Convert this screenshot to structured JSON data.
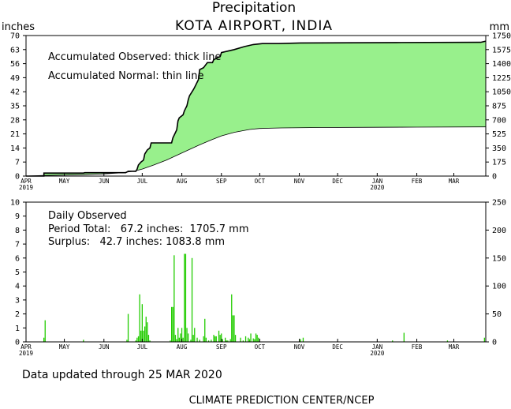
{
  "header": {
    "title": "Precipitation",
    "station": "KOTA AIRPORT, INDIA",
    "left_unit": "inches",
    "right_unit": "mm"
  },
  "top_panel": {
    "legend_observed": "Accumulated Observed: thick line",
    "legend_normal": "Accumulated Normal: thin line"
  },
  "bottom_panel": {
    "label": "Daily Observed",
    "period_total": "Period Total:   67.2 inches:  1705.7 mm",
    "surplus": "Surplus:   42.7 inches: 1083.8 mm"
  },
  "footer": {
    "updated": "Data updated through 25 MAR 2020",
    "credit": "CLIMATE PREDICTION CENTER/NCEP"
  },
  "colors": {
    "fill": "#98F08C",
    "bar": "#22CC00",
    "axis": "#000000"
  },
  "chart_data": [
    {
      "type": "area",
      "title": "Precipitation",
      "subtitle": "KOTA AIRPORT, INDIA",
      "ylabel": "inches",
      "y2label": "mm",
      "xlim_days": [
        0,
        360
      ],
      "ylim": [
        0,
        70
      ],
      "y2lim": [
        0,
        1750
      ],
      "yticks": [
        0,
        7,
        14,
        21,
        28,
        35,
        42,
        49,
        56,
        63,
        70
      ],
      "y2ticks": [
        0,
        175,
        350,
        525,
        700,
        875,
        1050,
        1225,
        1400,
        1575,
        1750
      ],
      "x_months": [
        {
          "label": "APR",
          "year": "2019",
          "day": 0
        },
        {
          "label": "MAY",
          "year": "",
          "day": 30
        },
        {
          "label": "JUN",
          "year": "",
          "day": 61
        },
        {
          "label": "JUL",
          "year": "",
          "day": 91
        },
        {
          "label": "AUG",
          "year": "",
          "day": 122
        },
        {
          "label": "SEP",
          "year": "",
          "day": 153
        },
        {
          "label": "OCT",
          "year": "",
          "day": 183
        },
        {
          "label": "NOV",
          "year": "",
          "day": 214
        },
        {
          "label": "DEC",
          "year": "",
          "day": 244
        },
        {
          "label": "JAN",
          "year": "2020",
          "day": 275
        },
        {
          "label": "FEB",
          "year": "",
          "day": 306
        },
        {
          "label": "MAR",
          "year": "",
          "day": 335
        }
      ],
      "series": [
        {
          "name": "Accumulated Observed",
          "points": [
            [
              0,
              0
            ],
            [
              14,
              0
            ],
            [
              14,
              1.5
            ],
            [
              45,
              1.5
            ],
            [
              46,
              1.7
            ],
            [
              78,
              1.7
            ],
            [
              80,
              2.4
            ],
            [
              86,
              2.4
            ],
            [
              87,
              3.5
            ],
            [
              88,
              5.5
            ],
            [
              90,
              7
            ],
            [
              92,
              8
            ],
            [
              93,
              11
            ],
            [
              95,
              13
            ],
            [
              97,
              14
            ],
            [
              98,
              16.5
            ],
            [
              114,
              16.5
            ],
            [
              115,
              19
            ],
            [
              118,
              23
            ],
            [
              119,
              27.5
            ],
            [
              120,
              29
            ],
            [
              123,
              30.5
            ],
            [
              124,
              32.5
            ],
            [
              126,
              35
            ],
            [
              127,
              38
            ],
            [
              128,
              40
            ],
            [
              131,
              43
            ],
            [
              132,
              44.2
            ],
            [
              135,
              48
            ],
            [
              136,
              53
            ],
            [
              139,
              54
            ],
            [
              142,
              56.5
            ],
            [
              146,
              56.5
            ],
            [
              147,
              58
            ],
            [
              152,
              59.5
            ],
            [
              153,
              61.5
            ],
            [
              163,
              63
            ],
            [
              171,
              64.5
            ],
            [
              178,
              65.5
            ],
            [
              185,
              66
            ],
            [
              198,
              66
            ],
            [
              215,
              66.3
            ],
            [
              290,
              66.5
            ],
            [
              356,
              66.6
            ],
            [
              360,
              67.2
            ]
          ]
        },
        {
          "name": "Accumulated Normal",
          "points": [
            [
              0,
              0
            ],
            [
              14,
              0.3
            ],
            [
              30,
              0.5
            ],
            [
              45,
              0.7
            ],
            [
              61,
              1.1
            ],
            [
              75,
              1.6
            ],
            [
              85,
              2.5
            ],
            [
              91,
              3.5
            ],
            [
              100,
              5.5
            ],
            [
              110,
              8
            ],
            [
              122,
              11.5
            ],
            [
              135,
              15.3
            ],
            [
              145,
              18
            ],
            [
              153,
              20
            ],
            [
              163,
              21.8
            ],
            [
              175,
              23.2
            ],
            [
              183,
              23.7
            ],
            [
              200,
              24
            ],
            [
              230,
              24.2
            ],
            [
              275,
              24.3
            ],
            [
              306,
              24.4
            ],
            [
              360,
              24.5
            ]
          ]
        }
      ]
    },
    {
      "type": "bar",
      "title": "Daily Observed",
      "ylabel": "inches",
      "y2label": "mm",
      "xlim_days": [
        0,
        360
      ],
      "ylim": [
        0,
        10
      ],
      "y2lim": [
        0,
        250
      ],
      "yticks": [
        0,
        1,
        2,
        3,
        4,
        5,
        6,
        7,
        8,
        9,
        10
      ],
      "y2ticks": [
        0,
        50,
        100,
        150,
        200,
        250
      ],
      "series": [
        {
          "name": "Daily Observed",
          "points": [
            [
              14,
              0.3
            ],
            [
              15,
              1.55
            ],
            [
              45,
              0.15
            ],
            [
              79,
              0.15
            ],
            [
              80,
              2.0
            ],
            [
              86,
              0.1
            ],
            [
              87,
              0.3
            ],
            [
              88,
              0.4
            ],
            [
              89,
              3.4
            ],
            [
              90,
              0.8
            ],
            [
              91,
              2.7
            ],
            [
              92,
              0.8
            ],
            [
              93,
              1.1
            ],
            [
              94,
              1.8
            ],
            [
              95,
              1.4
            ],
            [
              96,
              0.5
            ],
            [
              97,
              0.1
            ],
            [
              113,
              0.1
            ],
            [
              114,
              2.5
            ],
            [
              115,
              2.5
            ],
            [
              116,
              6.2
            ],
            [
              117,
              0.5
            ],
            [
              118,
              0.2
            ],
            [
              119,
              1.0
            ],
            [
              120,
              0.3
            ],
            [
              121,
              0.6
            ],
            [
              122,
              1.0
            ],
            [
              123,
              0.3
            ],
            [
              124,
              6.3
            ],
            [
              125,
              6.3
            ],
            [
              126,
              1.0
            ],
            [
              127,
              0.6
            ],
            [
              129,
              0.15
            ],
            [
              130,
              6.0
            ],
            [
              131,
              0.5
            ],
            [
              132,
              1.0
            ],
            [
              134,
              0.3
            ],
            [
              136,
              0.15
            ],
            [
              139,
              0.4
            ],
            [
              140,
              1.65
            ],
            [
              141,
              0.3
            ],
            [
              143,
              0.1
            ],
            [
              145,
              0.15
            ],
            [
              147,
              0.5
            ],
            [
              148,
              0.4
            ],
            [
              149,
              0.4
            ],
            [
              151,
              0.8
            ],
            [
              152,
              0.5
            ],
            [
              153,
              0.6
            ],
            [
              154,
              0.2
            ],
            [
              156,
              0.3
            ],
            [
              157,
              0.1
            ],
            [
              158,
              0.1
            ],
            [
              160,
              0.2
            ],
            [
              161,
              3.4
            ],
            [
              162,
              1.9
            ],
            [
              163,
              1.9
            ],
            [
              164,
              0.5
            ],
            [
              168,
              0.3
            ],
            [
              170,
              0.1
            ],
            [
              172,
              0.4
            ],
            [
              174,
              0.3
            ],
            [
              175,
              0.2
            ],
            [
              176,
              0.6
            ],
            [
              178,
              0.25
            ],
            [
              179,
              0.2
            ],
            [
              180,
              0.6
            ],
            [
              181,
              0.5
            ],
            [
              182,
              0.3
            ],
            [
              215,
              0.2
            ],
            [
              217,
              0.3
            ],
            [
              287,
              0.1
            ],
            [
              296,
              0.65
            ],
            [
              330,
              0.1
            ],
            [
              359,
              0.3
            ]
          ]
        }
      ]
    }
  ]
}
